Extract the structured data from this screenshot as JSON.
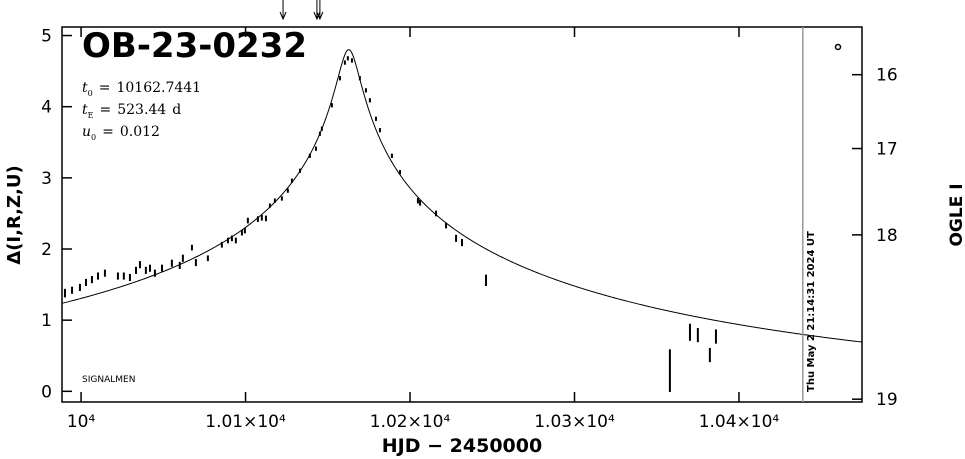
{
  "chart_data": {
    "type": "scatter",
    "title": "OB-23-0232",
    "parameters": [
      {
        "name": "t",
        "sub": "0",
        "op": "=",
        "value": 10162.7441
      },
      {
        "name": "t",
        "sub": "E",
        "op": "=",
        "value": 523.44,
        "unit": "d"
      },
      {
        "name": "u",
        "sub": "0",
        "op": "=",
        "value": 0.012
      }
    ],
    "note": "SIGNALMEN",
    "xlabel": "HJD − 2450000",
    "ylabel": "Δ(I,R,Z,U)",
    "y2label": "OGLE I",
    "xlim": [
      9988.4,
      10474.8
    ],
    "ylim": [
      -0.15,
      5.12
    ],
    "xticks": [
      {
        "value": 10000,
        "label": "10⁴"
      },
      {
        "value": 10100,
        "label": "1.01×10⁴"
      },
      {
        "value": 10200,
        "label": "1.02×10⁴"
      },
      {
        "value": 10300,
        "label": "1.03×10⁴"
      },
      {
        "value": 10400,
        "label": "1.04×10⁴"
      }
    ],
    "yticks": [
      0,
      1,
      2,
      3,
      4,
      5
    ],
    "y2ticks": [
      16,
      17,
      18,
      19
    ],
    "series": [
      {
        "color": "#000000",
        "x": [
          9990.2,
          9994.5,
          9999.3,
          10003,
          10006.6,
          10010.3,
          10014.5,
          10022.4,
          10026,
          10029.7,
          10033.4,
          10035.8,
          10039.4,
          10041.9,
          10044.9,
          10049.2,
          10055.2,
          10060,
          10061.9,
          10067.4,
          10069.8,
          10077.1,
          10085.6,
          10089.3,
          10091.7,
          10094.1,
          10097.8,
          10099.6,
          10101.4,
          10107.5,
          10109.9,
          10112.4,
          10114.8,
          10117.8,
          10122.1,
          10125.7,
          10128.2,
          10133.1,
          10139.1,
          10142.8,
          10145.2,
          10146.4,
          10152.5,
          10157.4,
          10160.4,
          10162.2,
          10164.7,
          10169.5,
          10173.2,
          10175.6,
          10179.3,
          10181.7,
          10189,
          10193.9,
          10204.8,
          10206.1,
          10215.8,
          10221.9,
          10228,
          10231.6,
          10246.2,
          10358,
          10370.2,
          10375,
          10382.3,
          10386
        ],
        "values": [
          1.38,
          1.42,
          1.46,
          1.53,
          1.57,
          1.62,
          1.66,
          1.62,
          1.62,
          1.6,
          1.7,
          1.78,
          1.7,
          1.73,
          1.66,
          1.73,
          1.8,
          1.77,
          1.87,
          2.02,
          1.81,
          1.87,
          2.06,
          2.12,
          2.15,
          2.12,
          2.23,
          2.26,
          2.4,
          2.42,
          2.44,
          2.43,
          2.61,
          2.68,
          2.71,
          2.82,
          2.96,
          3.1,
          3.31,
          3.41,
          3.62,
          3.69,
          4.02,
          4.4,
          4.62,
          4.68,
          4.65,
          4.4,
          4.23,
          4.09,
          3.83,
          3.67,
          3.31,
          3.08,
          2.68,
          2.65,
          2.5,
          2.33,
          2.15,
          2.09,
          1.56,
          0.29,
          0.83,
          0.79,
          0.51,
          0.77
        ],
        "errors": [
          0.06,
          0.05,
          0.05,
          0.05,
          0.05,
          0.05,
          0.05,
          0.05,
          0.05,
          0.05,
          0.05,
          0.05,
          0.05,
          0.05,
          0.05,
          0.05,
          0.05,
          0.05,
          0.05,
          0.04,
          0.05,
          0.04,
          0.04,
          0.04,
          0.04,
          0.04,
          0.04,
          0.04,
          0.04,
          0.04,
          0.04,
          0.04,
          0.03,
          0.03,
          0.03,
          0.03,
          0.03,
          0.03,
          0.03,
          0.03,
          0.03,
          0.03,
          0.03,
          0.03,
          0.03,
          0.03,
          0.03,
          0.03,
          0.03,
          0.03,
          0.03,
          0.03,
          0.03,
          0.03,
          0.04,
          0.04,
          0.04,
          0.04,
          0.05,
          0.05,
          0.08,
          0.3,
          0.12,
          0.1,
          0.1,
          0.1
        ]
      }
    ],
    "arrows_x": [
      10122.8,
      10143.4,
      10145.2
    ],
    "marker_line": {
      "x": 10438.8,
      "label": "Thu May 2 21:14:31 2024 UT",
      "color": "#999999"
    }
  }
}
